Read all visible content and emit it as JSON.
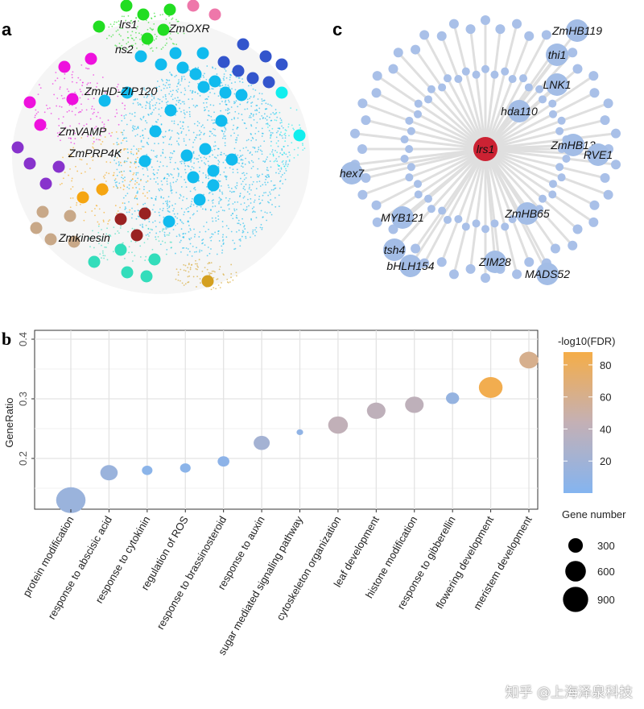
{
  "panels": {
    "a": "a",
    "b": "b",
    "c": "c"
  },
  "network_a": {
    "labels": [
      "lrs1",
      "ZmOXR",
      "ns2",
      "ZmHD-ZIP120",
      "ZmVAMP",
      "ZmPRP4K",
      "Zmkinesin"
    ],
    "module_colors": {
      "green": "#22dd22",
      "pink": "#ee77aa",
      "cyan": "#11bbee",
      "blue": "#3355cc",
      "aqua": "#11eeee",
      "magenta": "#ee11dd",
      "purple": "#8833cc",
      "orange": "#f5a511",
      "tan": "#c8a888",
      "darkred": "#992222",
      "teal": "#33ddbb",
      "gold": "#d4a020"
    }
  },
  "network_c": {
    "hub": "lrs1",
    "hub_color": "#cc2233",
    "node_color": "#a9c0e8",
    "labels": [
      "ZmHB119",
      "thi1",
      "LNK1",
      "hda110",
      "ZmHB13",
      "RVE1",
      "hex7",
      "MYB121",
      "tsh4",
      "bHLH154",
      "ZmHB65",
      "ZIM28",
      "MADS52"
    ]
  },
  "chart_data": {
    "type": "scatter",
    "ylabel": "GeneRatio",
    "xlabel": "",
    "ylim": [
      0.12,
      0.41
    ],
    "yticks": [
      "0.2",
      "0.3",
      "0.4"
    ],
    "grid": true,
    "categories": [
      "protein modification",
      "response to abscisic acid",
      "response to cytokinin",
      "regulation of ROS",
      "response to brassinosteroid",
      "response to auxin",
      "sugar mediated signaling pathway",
      "cytoskeleton organization",
      "leaf development",
      "histone modification",
      "response to gibberellin",
      "flowering development",
      "meristem development"
    ],
    "gene_ratio": [
      0.13,
      0.176,
      0.18,
      0.184,
      0.195,
      0.226,
      0.244,
      0.256,
      0.28,
      0.29,
      0.301,
      0.319,
      0.365
    ],
    "gene_number": [
      1000,
      350,
      130,
      130,
      160,
      300,
      50,
      450,
      400,
      400,
      200,
      650,
      420
    ],
    "neg_log10_fdr": [
      15,
      15,
      5,
      5,
      6,
      22,
      8,
      42,
      40,
      40,
      12,
      85,
      60
    ],
    "color_legend": {
      "title": "-log10(FDR)",
      "ticks": [
        "20",
        "40",
        "60",
        "80"
      ],
      "range": [
        0,
        88
      ],
      "low_color": "#84b4f0",
      "high_color": "#f5ad48"
    },
    "size_legend": {
      "title": "Gene number",
      "entries": [
        "300",
        "600",
        "900"
      ]
    },
    "legend_placement": "right"
  },
  "watermark": "知乎 @上海泽泉科技"
}
